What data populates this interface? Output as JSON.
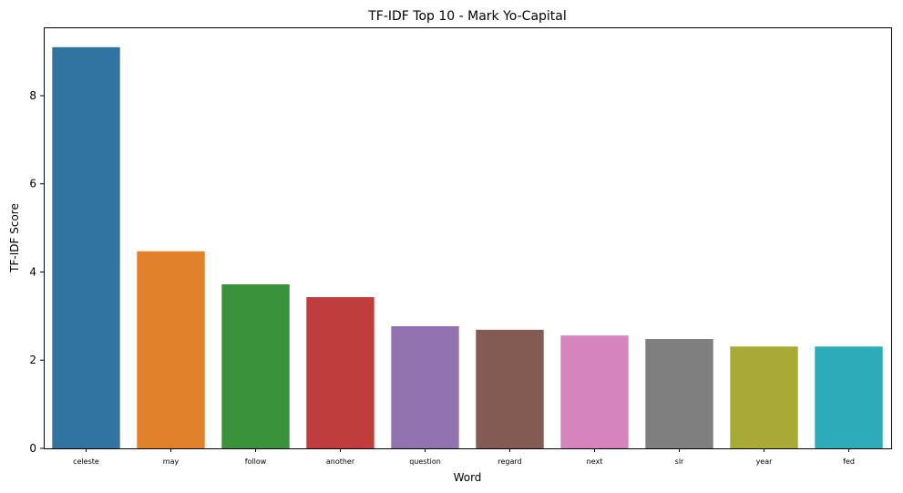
{
  "chart_data": {
    "type": "bar",
    "title": "TF-IDF Top 10 - Mark Yo-Capital",
    "xlabel": "Word",
    "ylabel": "TF-IDF Score",
    "categories": [
      "celeste",
      "may",
      "follow",
      "another",
      "question",
      "regard",
      "next",
      "slr",
      "year",
      "fed"
    ],
    "values": [
      9.1,
      4.47,
      3.72,
      3.43,
      2.77,
      2.69,
      2.56,
      2.48,
      2.31,
      2.31
    ],
    "colors": [
      "#3274a1",
      "#e1812c",
      "#3a923a",
      "#c03d3e",
      "#9372b2",
      "#845b53",
      "#d684bd",
      "#7f7f7f",
      "#a9aa35",
      "#2eabb8"
    ],
    "ylim": [
      0,
      9.55
    ],
    "yticks": [
      0,
      2,
      4,
      6,
      8
    ],
    "grid": false,
    "legend": "none"
  }
}
